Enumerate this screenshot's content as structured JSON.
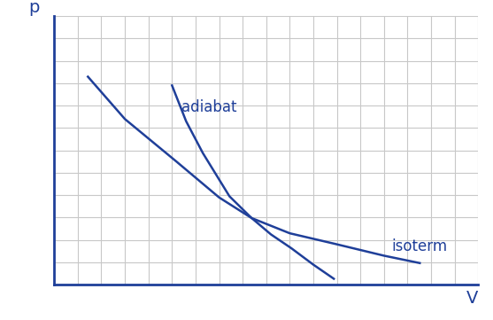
{
  "chart_data": {
    "type": "line",
    "x_label": "V",
    "y_label": "p",
    "series": [
      {
        "name": "isoterm",
        "color": "#1f3f99",
        "line_style": "solid",
        "x": [
          1.43,
          3.0,
          5.19,
          7.0,
          8.38,
          10.0,
          11.95,
          14.0,
          15.52
        ],
        "values": [
          9.29,
          7.4,
          5.5,
          3.9,
          2.98,
          2.3,
          1.82,
          1.3,
          0.97
        ]
      },
      {
        "name": "adiabat",
        "color": "#1f3f99",
        "line_style": "solid",
        "x": [
          5.0,
          5.6,
          6.31,
          7.44,
          8.38,
          9.2,
          10.07,
          11.0,
          11.87
        ],
        "values": [
          8.9,
          7.3,
          5.88,
          3.95,
          2.98,
          2.25,
          1.63,
          0.9,
          0.27
        ]
      }
    ],
    "xlim": [
      0,
      18
    ],
    "ylim": [
      0,
      12
    ],
    "xticks": [
      0,
      1,
      2,
      3,
      4,
      5,
      6,
      7,
      8,
      9,
      10,
      11,
      12,
      13,
      14,
      15,
      16,
      17,
      18
    ],
    "yticks": [
      0,
      1,
      2,
      3,
      4,
      5,
      6,
      7,
      8,
      9,
      10,
      11,
      12
    ],
    "grid": true,
    "tick_labels": false
  }
}
